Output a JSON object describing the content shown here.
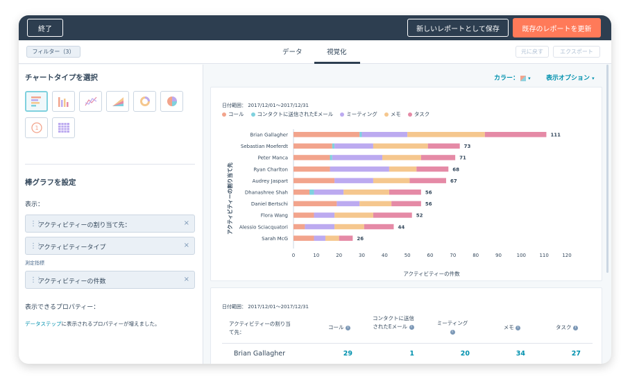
{
  "topbar": {
    "exit_label": "終了",
    "save_new_label": "新しいレポートとして保存",
    "update_label": "既存のレポートを更新"
  },
  "tabbar": {
    "filter_label": "フィルター（3）",
    "tabs": [
      {
        "label": "データ",
        "active": false
      },
      {
        "label": "視覚化",
        "active": true
      }
    ],
    "undo_label": "元に戻す",
    "export_label": "エクスポート"
  },
  "sidebar": {
    "chart_type_heading": "チャートタイプを選択",
    "chart_types": [
      "horizontal-bar-icon",
      "vertical-bar-icon",
      "line-chart-icon",
      "area-chart-icon",
      "donut-chart-icon",
      "pie-chart-icon",
      "single-value-icon",
      "heatmap-table-icon"
    ],
    "config_heading": "棒グラフを設定",
    "display_label": "表示：",
    "display_fields": [
      "アクティビティーの割り当て先：",
      "アクティビティータイプ"
    ],
    "measure_label": "測定指標",
    "measure_fields": [
      "アクティビティーの件数"
    ],
    "props_label": "表示できるプロパティー：",
    "data_step_link": "データステップ",
    "data_step_text": "に表示されるプロパティーが増えました。"
  },
  "main": {
    "color_label": "カラー：",
    "options_label": "表示オプション"
  },
  "chart_data": {
    "type": "bar",
    "orientation": "horizontal",
    "stacked": true,
    "date_range": "日付範囲： 2017/12/01〜2017/12/31",
    "ylabel": "アクティビティーの割り当て先",
    "xlabel": "アクティビティーの件数",
    "xlim": [
      0,
      120
    ],
    "xticks": [
      0,
      10,
      20,
      30,
      40,
      50,
      60,
      70,
      80,
      90,
      100,
      110,
      120
    ],
    "legend_position": "top-left",
    "categories": [
      "Brian Gallagher",
      "Sebastian Moeferdt",
      "Peter Manca",
      "Ryan Charlton",
      "Audrey Jaspart",
      "Dhanashree Shah",
      "Daniel Bertschi",
      "Flora Wang",
      "Alessio Sciacquatori",
      "Sarah McG"
    ],
    "totals": [
      111,
      73,
      71,
      68,
      67,
      56,
      56,
      52,
      44,
      26
    ],
    "series": [
      {
        "name": "コール",
        "color": "#f2a48c",
        "values": [
          29,
          17,
          16,
          16,
          18,
          7,
          19,
          9,
          5,
          9
        ]
      },
      {
        "name": "コンタクトに送信されたEメール",
        "color": "#7fd1de",
        "values": [
          1,
          1,
          1,
          0,
          0,
          2,
          0,
          0,
          0,
          0
        ]
      },
      {
        "name": "ミーティング",
        "color": "#bcaaf0",
        "values": [
          20,
          17,
          22,
          26,
          17,
          13,
          10,
          9,
          13,
          5
        ]
      },
      {
        "name": "メモ",
        "color": "#f5c78e",
        "values": [
          34,
          24,
          17,
          12,
          16,
          20,
          14,
          17,
          13,
          6
        ]
      },
      {
        "name": "タスク",
        "color": "#e58aa6",
        "values": [
          27,
          14,
          15,
          14,
          16,
          14,
          13,
          17,
          13,
          6
        ]
      }
    ]
  },
  "table": {
    "date_range": "日付範囲： 2017/12/01〜2017/12/31",
    "headers": [
      "アクティビティーの割り当て先：",
      "コール",
      "コンタクトに送信されたEメール",
      "ミーティング",
      "メモ",
      "タスク"
    ],
    "rows": [
      {
        "name": "Brian Gallagher",
        "values": [
          "29",
          "1",
          "20",
          "34",
          "27"
        ]
      }
    ]
  }
}
